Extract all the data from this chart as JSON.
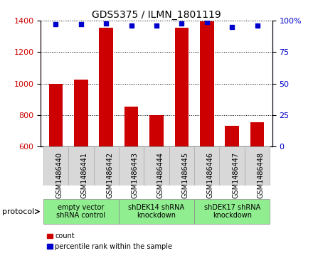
{
  "title": "GDS5375 / ILMN_1801119",
  "samples": [
    "GSM1486440",
    "GSM1486441",
    "GSM1486442",
    "GSM1486443",
    "GSM1486444",
    "GSM1486445",
    "GSM1486446",
    "GSM1486447",
    "GSM1486448"
  ],
  "counts": [
    1000,
    1025,
    1355,
    855,
    798,
    1355,
    1395,
    733,
    752
  ],
  "percentile_ranks": [
    97,
    97,
    98,
    96,
    96,
    98,
    99,
    95,
    96
  ],
  "ylim_left": [
    600,
    1400
  ],
  "ylim_right": [
    0,
    100
  ],
  "yticks_left": [
    600,
    800,
    1000,
    1200,
    1400
  ],
  "yticks_right": [
    0,
    25,
    50,
    75,
    100
  ],
  "bar_color": "#cc0000",
  "dot_color": "#0000cc",
  "sample_box_color": "#d8d8d8",
  "sample_box_edge": "#aaaaaa",
  "group_defs": [
    {
      "start": 0,
      "end": 2,
      "label": "empty vector\nshRNA control",
      "color": "#90ee90"
    },
    {
      "start": 3,
      "end": 5,
      "label": "shDEK14 shRNA\nknockdown",
      "color": "#90ee90"
    },
    {
      "start": 6,
      "end": 8,
      "label": "shDEK17 shRNA\nknockdown",
      "color": "#90ee90"
    }
  ],
  "protocol_label": "protocol",
  "legend_count_label": "count",
  "legend_pct_label": "percentile rank within the sample"
}
